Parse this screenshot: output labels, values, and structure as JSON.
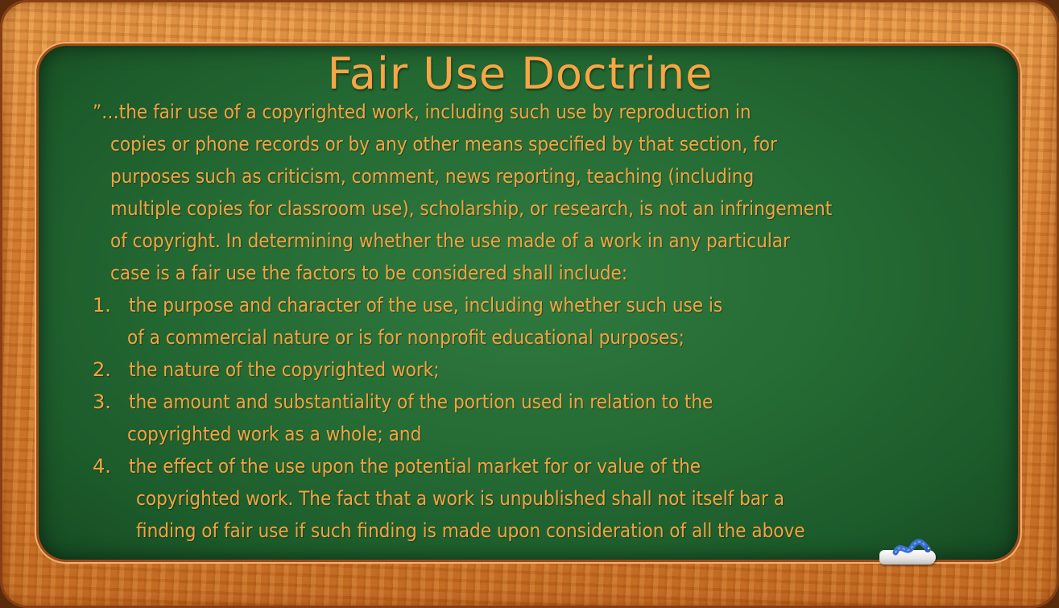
{
  "slide": {
    "title": "Fair Use Doctrine",
    "intro_lines": [
      "”…the fair use of a copyrighted work, including such use by reproduction in",
      "copies or phone records or by any other means specified by that section, for",
      "purposes such as criticism, comment, news reporting, teaching (including",
      "multiple copies for classroom use), scholarship, or research, is not an infringement",
      "of copyright. In determining whether the use made of a work in any particular",
      "case is a fair use the factors to be considered shall include:"
    ],
    "items": [
      {
        "number": "1.",
        "lines": [
          "the purpose and character of the use, including whether such use is",
          "of a commercial nature or is for nonprofit educational purposes;"
        ]
      },
      {
        "number": "2.",
        "lines": [
          "the nature of the copyrighted work;"
        ]
      },
      {
        "number": "3.",
        "lines": [
          "the amount and substantiality of the portion used in relation to the",
          "copyrighted work as a whole; and"
        ]
      },
      {
        "number": "4.",
        "lines": [
          "the effect of the use upon the potential market for or value of the",
          "copyrighted work. The fact that a work is unpublished shall not itself bar a",
          "finding of fair use if such finding is made upon consideration of all the above"
        ]
      }
    ]
  },
  "colors": {
    "chalk_text": "#f3a343",
    "board": "#256b34",
    "frame": "#d97d2c"
  },
  "icons": [
    "chalk-icon",
    "worm-icon"
  ]
}
